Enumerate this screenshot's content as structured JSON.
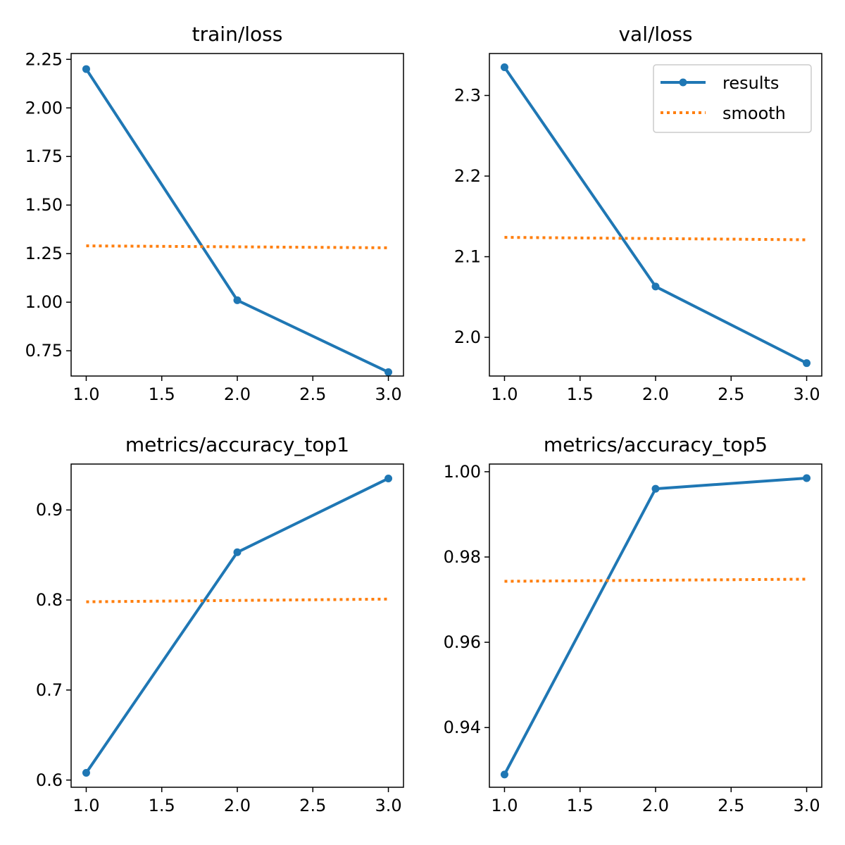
{
  "figure": {
    "background": "#ffffff",
    "colors": {
      "results": "#1f77b4",
      "smooth": "#ff7f0e"
    }
  },
  "legend": {
    "placement": "top-right of val/loss panel",
    "entries": [
      {
        "label": "results",
        "style": "solid line with circle markers",
        "color": "#1f77b4"
      },
      {
        "label": "smooth",
        "style": "dotted line",
        "color": "#ff7f0e"
      }
    ]
  },
  "chart_data": [
    {
      "type": "line",
      "title": "train/loss",
      "xlabel": "",
      "ylabel": "",
      "x": [
        1,
        2,
        3
      ],
      "xlim": [
        0.9,
        3.1
      ],
      "ylim": [
        0.62,
        2.28
      ],
      "xticks": [
        1.0,
        1.5,
        2.0,
        2.5,
        3.0
      ],
      "xtick_labels": [
        "1.0",
        "1.5",
        "2.0",
        "2.5",
        "3.0"
      ],
      "yticks": [
        0.75,
        1.0,
        1.25,
        1.5,
        1.75,
        2.0,
        2.25
      ],
      "ytick_labels": [
        "0.75",
        "1.00",
        "1.25",
        "1.50",
        "1.75",
        "2.00",
        "2.25"
      ],
      "grid": false,
      "series": [
        {
          "name": "results",
          "x": [
            1,
            2,
            3
          ],
          "values": [
            2.2,
            1.01,
            0.64
          ]
        },
        {
          "name": "smooth",
          "x": [
            1,
            3
          ],
          "values": [
            1.29,
            1.28
          ]
        }
      ]
    },
    {
      "type": "line",
      "title": "val/loss",
      "xlabel": "",
      "ylabel": "",
      "x": [
        1,
        2,
        3
      ],
      "xlim": [
        0.9,
        3.1
      ],
      "ylim": [
        1.952,
        2.352
      ],
      "xticks": [
        1.0,
        1.5,
        2.0,
        2.5,
        3.0
      ],
      "xtick_labels": [
        "1.0",
        "1.5",
        "2.0",
        "2.5",
        "3.0"
      ],
      "yticks": [
        2.0,
        2.1,
        2.2,
        2.3
      ],
      "ytick_labels": [
        "2.0",
        "2.1",
        "2.2",
        "2.3"
      ],
      "grid": false,
      "series": [
        {
          "name": "results",
          "x": [
            1,
            2,
            3
          ],
          "values": [
            2.335,
            2.063,
            1.968
          ]
        },
        {
          "name": "smooth",
          "x": [
            1,
            3
          ],
          "values": [
            2.124,
            2.121
          ]
        }
      ]
    },
    {
      "type": "line",
      "title": "metrics/accuracy_top1",
      "xlabel": "",
      "ylabel": "",
      "x": [
        1,
        2,
        3
      ],
      "xlim": [
        0.9,
        3.1
      ],
      "ylim": [
        0.592,
        0.951
      ],
      "xticks": [
        1.0,
        1.5,
        2.0,
        2.5,
        3.0
      ],
      "xtick_labels": [
        "1.0",
        "1.5",
        "2.0",
        "2.5",
        "3.0"
      ],
      "yticks": [
        0.6,
        0.7,
        0.8,
        0.9
      ],
      "ytick_labels": [
        "0.6",
        "0.7",
        "0.8",
        "0.9"
      ],
      "grid": false,
      "series": [
        {
          "name": "results",
          "x": [
            1,
            2,
            3
          ],
          "values": [
            0.608,
            0.853,
            0.935
          ]
        },
        {
          "name": "smooth",
          "x": [
            1,
            3
          ],
          "values": [
            0.798,
            0.801
          ]
        }
      ]
    },
    {
      "type": "line",
      "title": "metrics/accuracy_top5",
      "xlabel": "",
      "ylabel": "",
      "x": [
        1,
        2,
        3
      ],
      "xlim": [
        0.9,
        3.1
      ],
      "ylim": [
        0.926,
        1.0018
      ],
      "xticks": [
        1.0,
        1.5,
        2.0,
        2.5,
        3.0
      ],
      "xtick_labels": [
        "1.0",
        "1.5",
        "2.0",
        "2.5",
        "3.0"
      ],
      "yticks": [
        0.94,
        0.96,
        0.98,
        1.0
      ],
      "ytick_labels": [
        "0.94",
        "0.96",
        "0.98",
        "1.00"
      ],
      "grid": false,
      "series": [
        {
          "name": "results",
          "x": [
            1,
            2,
            3
          ],
          "values": [
            0.929,
            0.996,
            0.9985
          ]
        },
        {
          "name": "smooth",
          "x": [
            1,
            3
          ],
          "values": [
            0.9743,
            0.9748
          ]
        }
      ]
    }
  ]
}
